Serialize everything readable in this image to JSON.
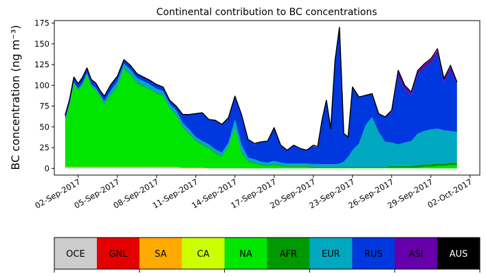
{
  "chart_data": {
    "type": "area",
    "stacked": true,
    "title": "Continental contribution to BC concentrations",
    "ylabel": "BC concentration (ng m⁻³)",
    "xlabel": "",
    "ylim": [
      -8,
      178
    ],
    "yticks": [
      0,
      25,
      50,
      75,
      100,
      125,
      150,
      175
    ],
    "xlim": [
      "2017-08-31T04:00",
      "2017-10-02T18:00"
    ],
    "xticks": [
      "02-Sep-2017",
      "05-Sep-2017",
      "08-Sep-2017",
      "11-Sep-2017",
      "14-Sep-2017",
      "17-Sep-2017",
      "20-Sep-2017",
      "23-Sep-2017",
      "26-Sep-2017",
      "29-Sep-2017",
      "02-Oct-2017"
    ],
    "xtick_dates": [
      "2017-09-02",
      "2017-09-05",
      "2017-09-08",
      "2017-09-11",
      "2017-09-14",
      "2017-09-17",
      "2017-09-20",
      "2017-09-23",
      "2017-09-26",
      "2017-09-29",
      "2017-10-02"
    ],
    "grid": false,
    "x": [
      "2017-09-01T00:00",
      "2017-09-01T08:00",
      "2017-09-01T16:00",
      "2017-09-02T00:00",
      "2017-09-02T08:00",
      "2017-09-02T16:00",
      "2017-09-03T00:00",
      "2017-09-03T08:00",
      "2017-09-03T16:00",
      "2017-09-04T00:00",
      "2017-09-04T12:00",
      "2017-09-05T00:00",
      "2017-09-05T12:00",
      "2017-09-06T00:00",
      "2017-09-06T12:00",
      "2017-09-07T00:00",
      "2017-09-07T12:00",
      "2017-09-08T00:00",
      "2017-09-08T12:00",
      "2017-09-09T00:00",
      "2017-09-09T12:00",
      "2017-09-10T00:00",
      "2017-09-10T12:00",
      "2017-09-11T00:00",
      "2017-09-11T12:00",
      "2017-09-12T00:00",
      "2017-09-12T12:00",
      "2017-09-13T00:00",
      "2017-09-13T12:00",
      "2017-09-14T00:00",
      "2017-09-14T12:00",
      "2017-09-15T00:00",
      "2017-09-15T12:00",
      "2017-09-16T00:00",
      "2017-09-16T12:00",
      "2017-09-17T00:00",
      "2017-09-17T12:00",
      "2017-09-18T00:00",
      "2017-09-18T12:00",
      "2017-09-19T00:00",
      "2017-09-19T12:00",
      "2017-09-20T00:00",
      "2017-09-20T08:00",
      "2017-09-20T16:00",
      "2017-09-21T00:00",
      "2017-09-21T08:00",
      "2017-09-21T16:00",
      "2017-09-22T00:00",
      "2017-09-22T08:00",
      "2017-09-22T16:00",
      "2017-09-23T00:00",
      "2017-09-23T12:00",
      "2017-09-24T00:00",
      "2017-09-24T12:00",
      "2017-09-25T00:00",
      "2017-09-25T12:00",
      "2017-09-26T00:00",
      "2017-09-26T12:00",
      "2017-09-27T00:00",
      "2017-09-27T12:00",
      "2017-09-28T00:00",
      "2017-09-28T12:00",
      "2017-09-29T00:00",
      "2017-09-29T12:00",
      "2017-09-30T00:00",
      "2017-09-30T12:00",
      "2017-10-01T00:00"
    ],
    "series": [
      {
        "name": "OCE",
        "color": "#cccccc",
        "values": [
          1,
          1,
          1,
          1,
          1,
          1,
          1,
          1,
          1,
          1,
          1,
          1,
          1,
          1,
          1,
          1,
          1,
          1,
          1,
          1,
          1,
          0,
          0,
          0,
          0,
          0,
          0,
          0,
          0,
          0,
          0,
          0,
          0,
          0,
          0,
          0,
          0,
          0,
          0,
          0,
          0,
          0,
          0,
          0,
          0,
          0,
          0,
          0,
          0,
          0,
          0,
          0,
          0,
          0,
          0,
          0,
          0,
          0,
          0,
          0,
          0,
          0,
          0,
          0,
          0,
          0,
          0
        ]
      },
      {
        "name": "GNL",
        "color": "#e50000",
        "values": [
          0,
          0,
          0,
          0,
          0,
          0,
          0,
          0,
          0,
          0,
          0,
          0,
          0,
          0,
          0,
          0,
          0,
          0,
          0,
          0,
          0,
          0,
          0,
          0,
          0,
          0,
          0,
          0,
          0,
          0,
          0,
          0,
          0,
          0,
          0,
          0,
          0,
          0,
          0,
          0,
          0,
          0,
          0,
          0,
          0,
          0,
          0,
          0,
          0,
          0,
          0,
          0,
          0,
          0,
          0,
          0,
          0,
          0,
          0,
          0,
          0,
          0,
          0,
          0,
          0,
          0,
          0
        ]
      },
      {
        "name": "SA",
        "color": "#ffaa00",
        "values": [
          1,
          1,
          1,
          1,
          1,
          1,
          1,
          1,
          1,
          1,
          1,
          1,
          1,
          1,
          1,
          1,
          1,
          1,
          1,
          1,
          1,
          1,
          1,
          1,
          1,
          0,
          0,
          0,
          0,
          0,
          0,
          0,
          0,
          0,
          0,
          0,
          0,
          0,
          0,
          0,
          0,
          0,
          0,
          0,
          0,
          0,
          0,
          0,
          0,
          0,
          0,
          0,
          0,
          0,
          0,
          0,
          0,
          0,
          0,
          0,
          0,
          0,
          0,
          0,
          0,
          0,
          0
        ]
      },
      {
        "name": "CA",
        "color": "#ccff00",
        "values": [
          0,
          0,
          0,
          0,
          0,
          0,
          0,
          0,
          0,
          0,
          0,
          0,
          0,
          0,
          0,
          0,
          0,
          0,
          0,
          0,
          0,
          0,
          0,
          0,
          0,
          0,
          0,
          0,
          0,
          0,
          0,
          0,
          0,
          0,
          0,
          0,
          0,
          0,
          0,
          0,
          0,
          0,
          0,
          0,
          0,
          0,
          0,
          0,
          0,
          0,
          0,
          0,
          0,
          0,
          0,
          0,
          0,
          0,
          0,
          0,
          0,
          0,
          0,
          0,
          0,
          0,
          0
        ]
      },
      {
        "name": "NA",
        "color": "#00e600",
        "values": [
          55,
          74,
          100,
          92,
          98,
          110,
          96,
          92,
          84,
          75,
          86,
          96,
          118,
          110,
          100,
          96,
          93,
          88,
          85,
          70,
          62,
          48,
          40,
          32,
          27,
          24,
          18,
          14,
          26,
          48,
          18,
          8,
          6,
          4,
          3,
          4,
          3,
          2,
          2,
          2,
          2,
          1,
          1,
          1,
          1,
          1,
          1,
          1,
          1,
          1,
          1,
          1,
          1,
          1,
          1,
          1,
          1,
          1,
          1,
          1,
          1,
          2,
          2,
          3,
          3,
          4,
          4
        ]
      },
      {
        "name": "AFR",
        "color": "#009900",
        "values": [
          1,
          1,
          1,
          1,
          1,
          1,
          1,
          1,
          1,
          1,
          1,
          1,
          1,
          1,
          1,
          1,
          1,
          1,
          1,
          1,
          1,
          1,
          1,
          1,
          1,
          1,
          1,
          1,
          1,
          1,
          1,
          1,
          1,
          1,
          1,
          1,
          1,
          1,
          1,
          1,
          1,
          1,
          1,
          1,
          1,
          1,
          1,
          1,
          1,
          1,
          1,
          1,
          1,
          1,
          1,
          1,
          2,
          2,
          2,
          2,
          3,
          3,
          3,
          3,
          3,
          3,
          3
        ]
      },
      {
        "name": "EUR",
        "color": "#00a8c0",
        "values": [
          1,
          1,
          1,
          1,
          2,
          2,
          2,
          2,
          2,
          3,
          5,
          6,
          5,
          6,
          6,
          6,
          5,
          5,
          5,
          5,
          5,
          5,
          5,
          4,
          4,
          4,
          4,
          4,
          4,
          10,
          10,
          4,
          4,
          3,
          3,
          4,
          3,
          3,
          3,
          3,
          3,
          3,
          3,
          3,
          3,
          3,
          3,
          4,
          6,
          12,
          20,
          28,
          50,
          60,
          42,
          30,
          28,
          26,
          28,
          30,
          38,
          40,
          42,
          42,
          40,
          38,
          37
        ]
      },
      {
        "name": "RUS",
        "color": "#0038e0",
        "values": [
          5,
          5,
          6,
          6,
          6,
          5,
          6,
          6,
          5,
          6,
          6,
          6,
          5,
          5,
          5,
          5,
          5,
          5,
          5,
          5,
          5,
          10,
          18,
          28,
          34,
          30,
          35,
          34,
          30,
          28,
          35,
          22,
          18,
          24,
          26,
          40,
          21,
          16,
          22,
          18,
          16,
          22,
          20,
          52,
          76,
          42,
          124,
          164,
          34,
          24,
          76,
          56,
          36,
          28,
          22,
          30,
          36,
          82,
          64,
          55,
          72,
          76,
          80,
          90,
          58,
          72,
          58
        ]
      },
      {
        "name": "ASI",
        "color": "#6600aa",
        "values": [
          0,
          0,
          0,
          0,
          0,
          0,
          0,
          0,
          0,
          0,
          0,
          0,
          0,
          0,
          0,
          0,
          0,
          0,
          0,
          0,
          0,
          0,
          0,
          0,
          0,
          0,
          0,
          0,
          0,
          0,
          0,
          0,
          0,
          0,
          0,
          0,
          0,
          0,
          0,
          0,
          0,
          0,
          0,
          0,
          0,
          0,
          0,
          0,
          0,
          0,
          0,
          0,
          0,
          0,
          0,
          0,
          2,
          6,
          4,
          3,
          3,
          4,
          4,
          4,
          3,
          5,
          3
        ]
      },
      {
        "name": "AUS",
        "color": "#000000",
        "values": [
          0,
          0,
          0,
          0,
          0,
          0,
          0,
          0,
          0,
          0,
          0,
          0,
          0,
          0,
          0,
          0,
          0,
          0,
          0,
          0,
          0,
          0,
          0,
          0,
          0,
          0,
          0,
          0,
          0,
          0,
          0,
          0,
          0,
          0,
          0,
          0,
          0,
          0,
          0,
          0,
          0,
          0,
          0,
          0,
          0,
          0,
          0,
          0,
          0,
          0,
          0,
          0,
          0,
          0,
          0,
          0,
          0,
          0,
          0,
          0,
          0,
          0,
          0,
          0,
          0,
          0,
          0
        ]
      }
    ],
    "total": {
      "color": "#000000",
      "values": [
        64,
        83,
        110,
        102,
        110,
        121,
        107,
        103,
        94,
        87,
        101,
        111,
        131,
        124,
        114,
        110,
        106,
        101,
        98,
        82,
        75,
        65,
        65,
        66,
        67,
        59,
        58,
        53,
        61,
        87,
        65,
        35,
        30,
        32,
        33,
        49,
        28,
        22,
        28,
        24,
        22,
        28,
        26,
        58,
        82,
        48,
        130,
        170,
        42,
        38,
        98,
        86,
        88,
        90,
        66,
        62,
        70,
        118,
        100,
        92,
        118,
        126,
        132,
        144,
        108,
        124,
        104
      ]
    },
    "legend": {
      "placement": "bottom",
      "entries": [
        {
          "label": "OCE",
          "color": "#cccccc",
          "text_color": "#000000"
        },
        {
          "label": "GNL",
          "color": "#e50000",
          "text_color": "#000000"
        },
        {
          "label": "SA",
          "color": "#ffaa00",
          "text_color": "#000000"
        },
        {
          "label": "CA",
          "color": "#ccff00",
          "text_color": "#000000"
        },
        {
          "label": "NA",
          "color": "#00e600",
          "text_color": "#000000"
        },
        {
          "label": "AFR",
          "color": "#009900",
          "text_color": "#000000"
        },
        {
          "label": "EUR",
          "color": "#00a8c0",
          "text_color": "#000000"
        },
        {
          "label": "RUS",
          "color": "#0038e0",
          "text_color": "#000000"
        },
        {
          "label": "ASI",
          "color": "#6600aa",
          "text_color": "#000000"
        },
        {
          "label": "AUS",
          "color": "#000000",
          "text_color": "#ffffff"
        }
      ]
    }
  }
}
